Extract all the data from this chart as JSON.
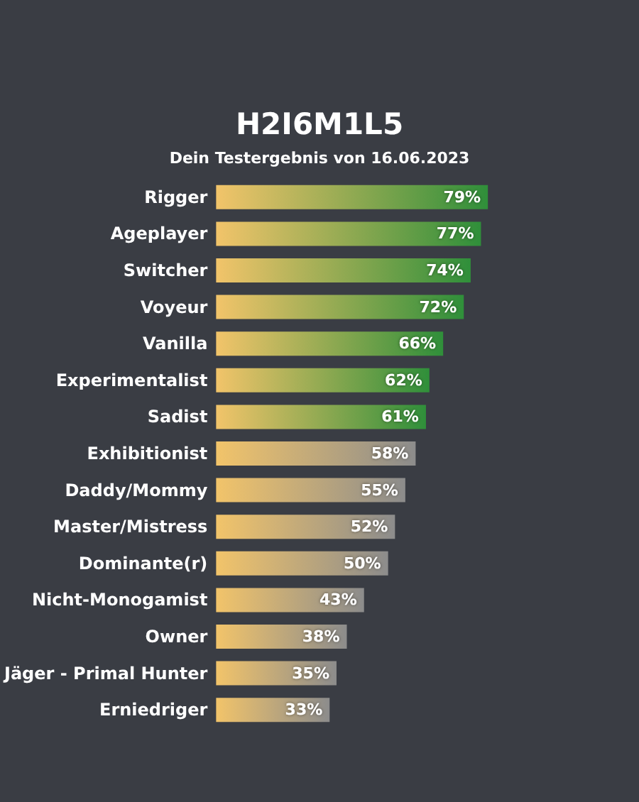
{
  "chart_data": {
    "type": "bar",
    "orientation": "horizontal",
    "title": "H2I6M1L5",
    "subtitle": "Dein Testergebnis von 16.06.2023",
    "categories": [
      "Rigger",
      "Ageplayer",
      "Switcher",
      "Voyeur",
      "Vanilla",
      "Experimentalist",
      "Sadist",
      "Exhibitionist",
      "Daddy/Mommy",
      "Master/Mistress",
      "Dominante(r)",
      "Nicht-Monogamist",
      "Owner",
      "Jäger - Primal Hunter",
      "Erniedriger"
    ],
    "values": [
      79,
      77,
      74,
      72,
      66,
      62,
      61,
      58,
      55,
      52,
      50,
      43,
      38,
      35,
      33
    ],
    "value_labels": [
      "79%",
      "77%",
      "74%",
      "72%",
      "66%",
      "62%",
      "61%",
      "58%",
      "55%",
      "52%",
      "50%",
      "43%",
      "38%",
      "35%",
      "33%"
    ],
    "colors": [
      "#2f8f3a",
      "#2f8f3a",
      "#2f8f3a",
      "#2f8f3a",
      "#2f8f3a",
      "#2f8f3a",
      "#2f8f3a",
      "#8c8c8c",
      "#8c8c8c",
      "#8c8c8c",
      "#8c8c8c",
      "#8c8c8c",
      "#8c8c8c",
      "#8c8c8c",
      "#8c8c8c"
    ],
    "tick_labels": "y",
    "grid": false
  }
}
